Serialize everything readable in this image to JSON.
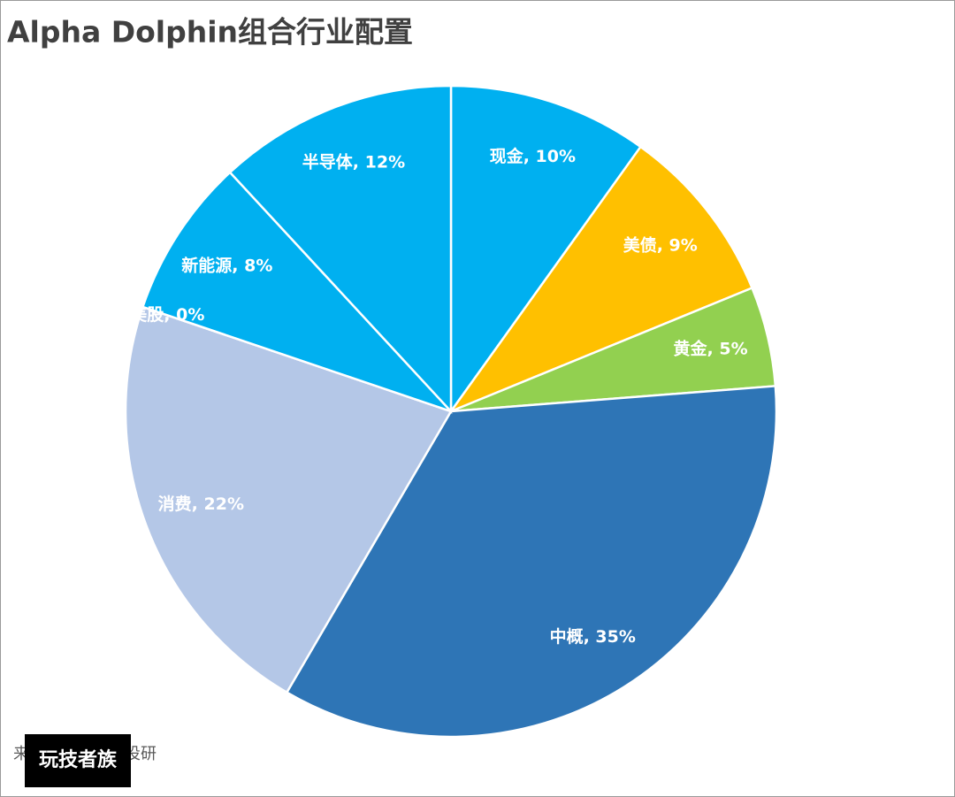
{
  "chart_data": {
    "type": "pie",
    "title": "Alpha Dolphin组合行业配置",
    "values": [
      10,
      9,
      5,
      35,
      22,
      0,
      8,
      12
    ],
    "value_labels": [
      "现金, 10%",
      "美债, 9%",
      "黄金, 5%",
      "中概, 35%",
      "消费, 22%",
      "美股, 0%",
      "新能源, 8%",
      "半导体, 12%"
    ],
    "colors": [
      "#00b0f0",
      "#ffc000",
      "#92d050",
      "#2e75b6",
      "#b4c7e7",
      "#b4c7e7",
      "#00b0f0",
      "#00b0f0"
    ],
    "source": "来源：长桥海豚投研"
  },
  "badge": "玩技者族"
}
